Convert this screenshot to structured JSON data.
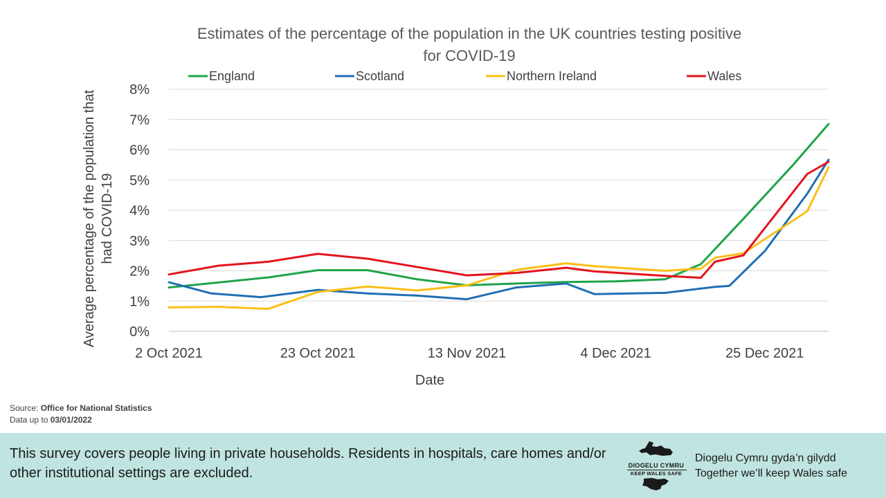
{
  "chart_data": {
    "type": "line",
    "title": "Estimates of the percentage of the population in the UK countries testing positive for COVID-19",
    "title_lines": [
      "Estimates of the percentage of the population in the UK countries testing positive",
      "for COVID-19"
    ],
    "xlabel": "Date",
    "ylabel_lines": [
      "Average percentage of the population that",
      "had COVID-19"
    ],
    "x_ticks": [
      "2 Oct 2021",
      "23 Oct 2021",
      "13 Nov 2021",
      "4 Dec 2021",
      "25 Dec 2021"
    ],
    "x_tick_dates": [
      "2021-10-02",
      "2021-10-23",
      "2021-11-13",
      "2021-12-04",
      "2021-12-25"
    ],
    "xlim": [
      "2021-10-02",
      "2022-01-03"
    ],
    "ylim": [
      0,
      8
    ],
    "y_ticks": [
      "0%",
      "1%",
      "2%",
      "3%",
      "4%",
      "5%",
      "6%",
      "7%",
      "8%"
    ],
    "grid": "horizontal",
    "legend_position": "top",
    "series": [
      {
        "name": "England",
        "color": "#1fa34a",
        "points": [
          [
            "2021-10-02",
            1.45
          ],
          [
            "2021-10-16",
            1.78
          ],
          [
            "2021-10-23",
            2.02
          ],
          [
            "2021-10-30",
            2.02
          ],
          [
            "2021-11-06",
            1.72
          ],
          [
            "2021-11-13",
            1.52
          ],
          [
            "2021-11-20",
            1.58
          ],
          [
            "2021-11-27",
            1.63
          ],
          [
            "2021-12-04",
            1.65
          ],
          [
            "2021-12-11",
            1.72
          ],
          [
            "2021-12-16",
            2.22
          ],
          [
            "2021-12-22",
            3.72
          ],
          [
            "2021-12-29",
            5.5
          ],
          [
            "2022-01-03",
            6.85
          ]
        ]
      },
      {
        "name": "Scotland",
        "color": "#1f6fb4",
        "points": [
          [
            "2021-10-02",
            1.62
          ],
          [
            "2021-10-08",
            1.25
          ],
          [
            "2021-10-15",
            1.13
          ],
          [
            "2021-10-23",
            1.37
          ],
          [
            "2021-10-30",
            1.25
          ],
          [
            "2021-11-06",
            1.18
          ],
          [
            "2021-11-13",
            1.06
          ],
          [
            "2021-11-20",
            1.45
          ],
          [
            "2021-11-27",
            1.58
          ],
          [
            "2021-12-01",
            1.23
          ],
          [
            "2021-12-11",
            1.27
          ],
          [
            "2021-12-18",
            1.47
          ],
          [
            "2021-12-20",
            1.5
          ],
          [
            "2021-12-25",
            2.65
          ],
          [
            "2021-12-31",
            4.55
          ],
          [
            "2022-01-03",
            5.67
          ]
        ]
      },
      {
        "name": "Northern Ireland",
        "color": "#fbbf14",
        "points": [
          [
            "2021-10-02",
            0.79
          ],
          [
            "2021-10-09",
            0.81
          ],
          [
            "2021-10-16",
            0.74
          ],
          [
            "2021-10-23",
            1.3
          ],
          [
            "2021-10-30",
            1.48
          ],
          [
            "2021-11-06",
            1.35
          ],
          [
            "2021-11-13",
            1.52
          ],
          [
            "2021-11-20",
            2.03
          ],
          [
            "2021-11-27",
            2.25
          ],
          [
            "2021-12-01",
            2.15
          ],
          [
            "2021-12-11",
            2.0
          ],
          [
            "2021-12-16",
            2.07
          ],
          [
            "2021-12-18",
            2.43
          ],
          [
            "2021-12-22",
            2.58
          ],
          [
            "2021-12-31",
            3.97
          ],
          [
            "2022-01-03",
            5.42
          ]
        ]
      },
      {
        "name": "Wales",
        "color": "#e4141d",
        "points": [
          [
            "2021-10-02",
            1.88
          ],
          [
            "2021-10-09",
            2.17
          ],
          [
            "2021-10-16",
            2.3
          ],
          [
            "2021-10-23",
            2.56
          ],
          [
            "2021-10-30",
            2.4
          ],
          [
            "2021-11-13",
            1.85
          ],
          [
            "2021-11-20",
            1.93
          ],
          [
            "2021-11-27",
            2.1
          ],
          [
            "2021-12-01",
            1.98
          ],
          [
            "2021-12-11",
            1.83
          ],
          [
            "2021-12-16",
            1.77
          ],
          [
            "2021-12-18",
            2.3
          ],
          [
            "2021-12-22",
            2.51
          ],
          [
            "2021-12-31",
            5.2
          ],
          [
            "2022-01-03",
            5.6
          ]
        ]
      }
    ]
  },
  "source": {
    "label": "Source: ",
    "value": "Office for National Statistics",
    "data_label": "Data up to ",
    "data_value": "03/01/2022"
  },
  "footer": {
    "note": "This survey covers people living in private households. Residents in hospitals, care homes and/or other institutional settings are excluded.",
    "logo_line1": "DIOGELU CYMRU",
    "logo_line2": "KEEP WALES SAFE",
    "slogan_line1": "Diogelu Cymru gyda’n gilydd",
    "slogan_line2": "Together we’ll keep Wales safe",
    "background_color": "#c0e4e0"
  }
}
